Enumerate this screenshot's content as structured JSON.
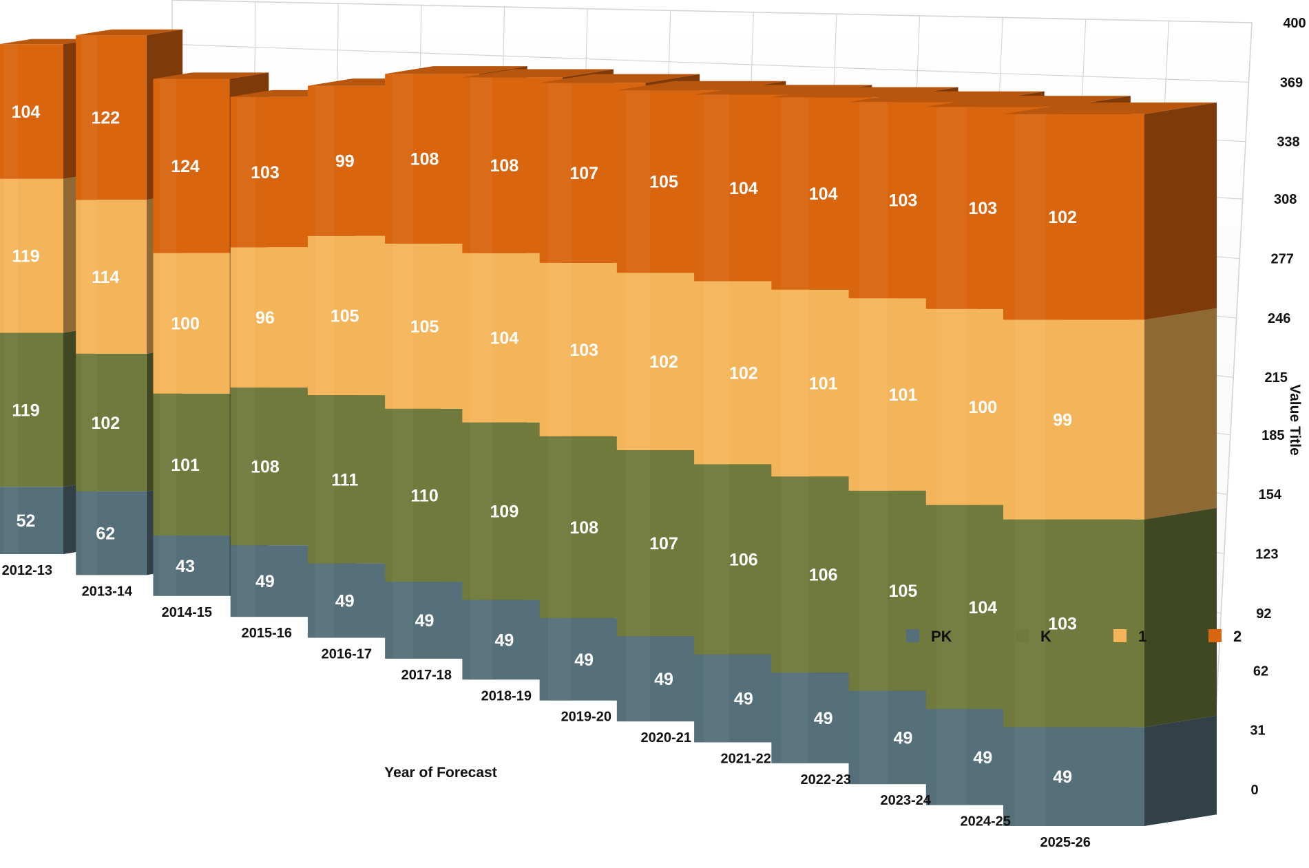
{
  "chart_data": {
    "type": "bar",
    "stacked": true,
    "style": "3d-perspective",
    "x_axis_title": "Year of Forecast",
    "y_axis_title": "Value Title",
    "ylim": [
      0,
      400
    ],
    "y_ticks": [
      0,
      31,
      62,
      92,
      123,
      154,
      185,
      215,
      246,
      277,
      308,
      338,
      369,
      400
    ],
    "grid": true,
    "legend_position": "right",
    "categories": [
      "2012-13",
      "2013-14",
      "2014-15",
      "2015-16",
      "2016-17",
      "2017-18",
      "2018-19",
      "2019-20",
      "2020-21",
      "2021-22",
      "2022-23",
      "2023-24",
      "2024-25",
      "2025-26"
    ],
    "series": [
      {
        "name": "PK",
        "color": "#55707a",
        "values": [
          52,
          62,
          43,
          49,
          49,
          49,
          49,
          49,
          49,
          49,
          49,
          49,
          49,
          49
        ]
      },
      {
        "name": "K",
        "color": "#6f7a3c",
        "values": [
          119,
          102,
          101,
          108,
          111,
          110,
          109,
          108,
          107,
          106,
          106,
          105,
          104,
          103
        ]
      },
      {
        "name": "1",
        "color": "#f4b55a",
        "values": [
          119,
          114,
          100,
          96,
          105,
          105,
          104,
          103,
          102,
          102,
          101,
          101,
          100,
          99
        ]
      },
      {
        "name": "2",
        "color": "#d9650f",
        "values": [
          104,
          122,
          124,
          103,
          99,
          108,
          108,
          107,
          105,
          104,
          104,
          103,
          103,
          102
        ]
      }
    ]
  }
}
